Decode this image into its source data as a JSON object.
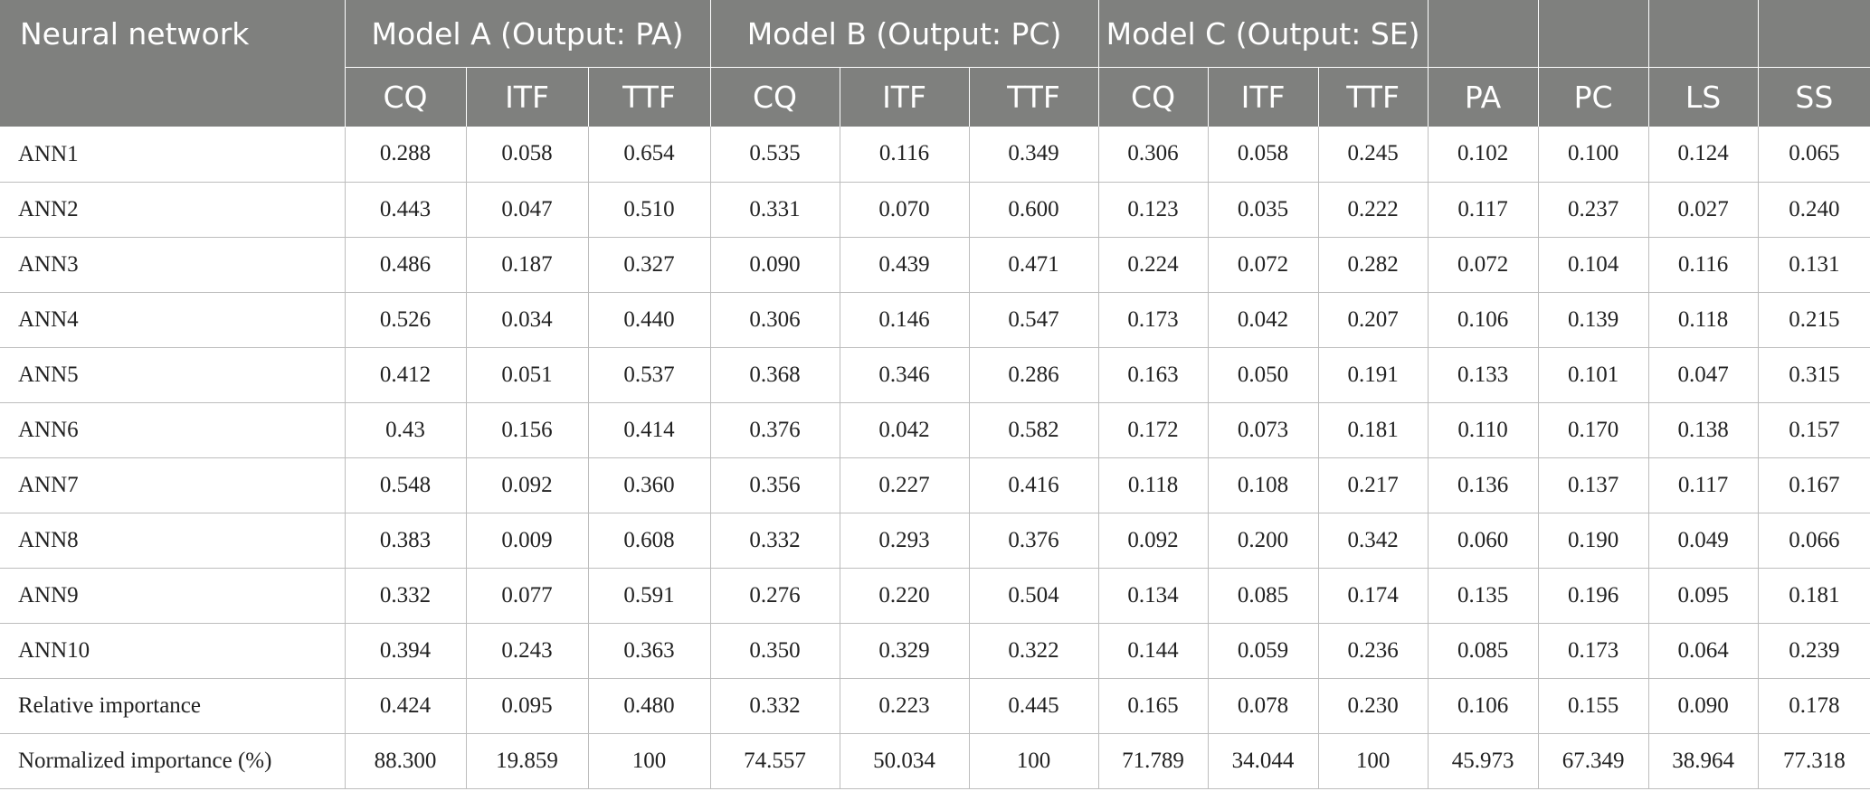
{
  "header": {
    "row_label_header": "Neural network",
    "groups": [
      "Model A (Output: PA)",
      "Model B (Output: PC)",
      "Model C (Output: SE)"
    ],
    "columns": [
      "CQ",
      "ITF",
      "TTF",
      "CQ",
      "ITF",
      "TTF",
      "CQ",
      "ITF",
      "TTF",
      "PA",
      "PC",
      "LS",
      "SS"
    ]
  },
  "rows": [
    {
      "label": "ANN1",
      "values": [
        "0.288",
        "0.058",
        "0.654",
        "0.535",
        "0.116",
        "0.349",
        "0.306",
        "0.058",
        "0.245",
        "0.102",
        "0.100",
        "0.124",
        "0.065"
      ]
    },
    {
      "label": "ANN2",
      "values": [
        "0.443",
        "0.047",
        "0.510",
        "0.331",
        "0.070",
        "0.600",
        "0.123",
        "0.035",
        "0.222",
        "0.117",
        "0.237",
        "0.027",
        "0.240"
      ]
    },
    {
      "label": "ANN3",
      "values": [
        "0.486",
        "0.187",
        "0.327",
        "0.090",
        "0.439",
        "0.471",
        "0.224",
        "0.072",
        "0.282",
        "0.072",
        "0.104",
        "0.116",
        "0.131"
      ]
    },
    {
      "label": "ANN4",
      "values": [
        "0.526",
        "0.034",
        "0.440",
        "0.306",
        "0.146",
        "0.547",
        "0.173",
        "0.042",
        "0.207",
        "0.106",
        "0.139",
        "0.118",
        "0.215"
      ]
    },
    {
      "label": "ANN5",
      "values": [
        "0.412",
        "0.051",
        "0.537",
        "0.368",
        "0.346",
        "0.286",
        "0.163",
        "0.050",
        "0.191",
        "0.133",
        "0.101",
        "0.047",
        "0.315"
      ]
    },
    {
      "label": "ANN6",
      "values": [
        "0.43",
        "0.156",
        "0.414",
        "0.376",
        "0.042",
        "0.582",
        "0.172",
        "0.073",
        "0.181",
        "0.110",
        "0.170",
        "0.138",
        "0.157"
      ]
    },
    {
      "label": "ANN7",
      "values": [
        "0.548",
        "0.092",
        "0.360",
        "0.356",
        "0.227",
        "0.416",
        "0.118",
        "0.108",
        "0.217",
        "0.136",
        "0.137",
        "0.117",
        "0.167"
      ]
    },
    {
      "label": "ANN8",
      "values": [
        "0.383",
        "0.009",
        "0.608",
        "0.332",
        "0.293",
        "0.376",
        "0.092",
        "0.200",
        "0.342",
        "0.060",
        "0.190",
        "0.049",
        "0.066"
      ]
    },
    {
      "label": "ANN9",
      "values": [
        "0.332",
        "0.077",
        "0.591",
        "0.276",
        "0.220",
        "0.504",
        "0.134",
        "0.085",
        "0.174",
        "0.135",
        "0.196",
        "0.095",
        "0.181"
      ]
    },
    {
      "label": "ANN10",
      "values": [
        "0.394",
        "0.243",
        "0.363",
        "0.350",
        "0.329",
        "0.322",
        "0.144",
        "0.059",
        "0.236",
        "0.085",
        "0.173",
        "0.064",
        "0.239"
      ]
    },
    {
      "label": "Relative importance",
      "values": [
        "0.424",
        "0.095",
        "0.480",
        "0.332",
        "0.223",
        "0.445",
        "0.165",
        "0.078",
        "0.230",
        "0.106",
        "0.155",
        "0.090",
        "0.178"
      ]
    },
    {
      "label": "Normalized importance (%)",
      "values": [
        "88.300",
        "19.859",
        "100",
        "74.557",
        "50.034",
        "100",
        "71.789",
        "34.044",
        "100",
        "45.973",
        "67.349",
        "38.964",
        "77.318"
      ]
    }
  ]
}
